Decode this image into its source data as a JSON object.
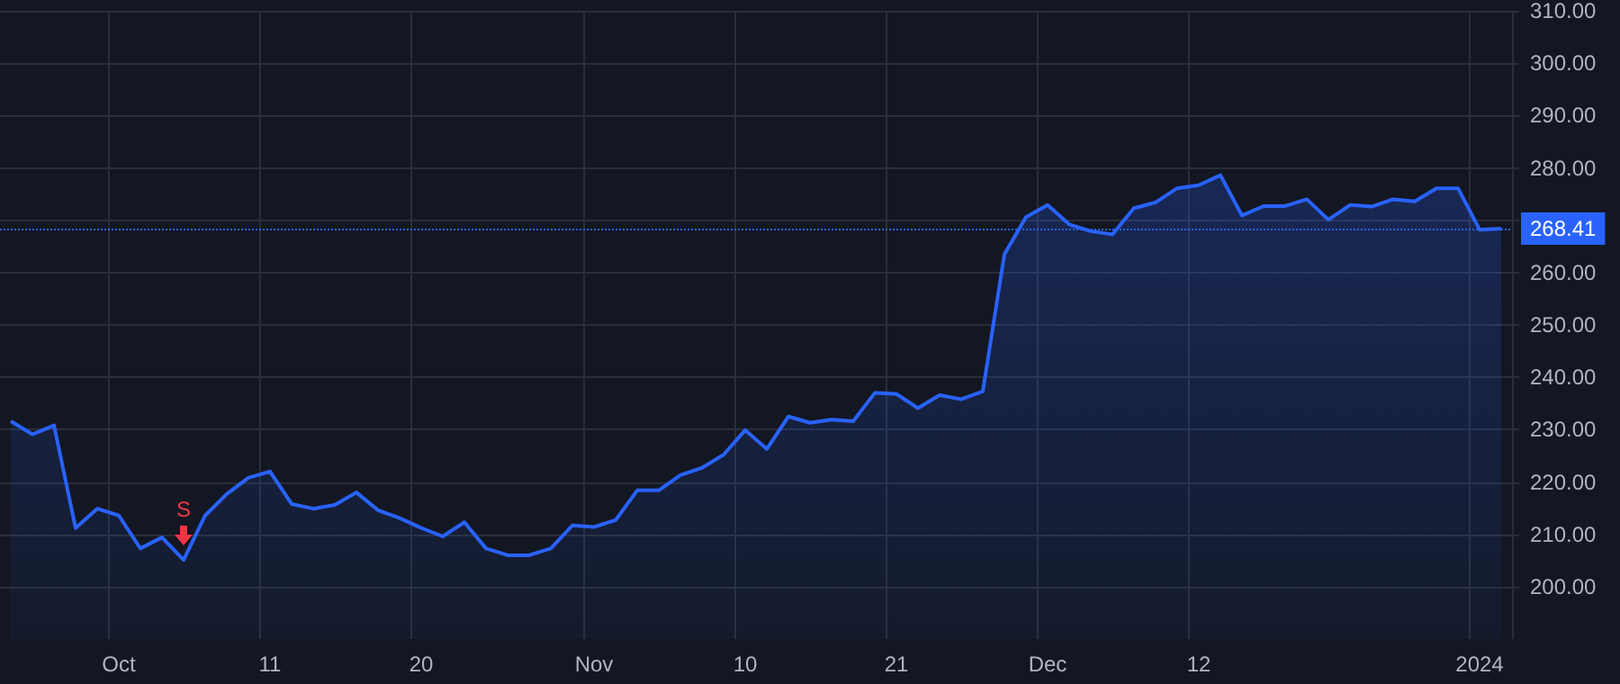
{
  "chart_data": {
    "type": "area",
    "categories": [
      null,
      null,
      null,
      null,
      null,
      "Oct",
      null,
      null,
      null,
      null,
      null,
      null,
      "11",
      null,
      null,
      null,
      null,
      null,
      null,
      "20",
      null,
      null,
      null,
      null,
      null,
      null,
      null,
      "Nov",
      null,
      null,
      null,
      null,
      null,
      null,
      "10",
      null,
      null,
      null,
      null,
      null,
      null,
      "21",
      null,
      null,
      null,
      null,
      null,
      null,
      "Dec",
      null,
      null,
      null,
      null,
      null,
      null,
      "12",
      null,
      null,
      null,
      null,
      null,
      null,
      null,
      null,
      null,
      null,
      null,
      null,
      "2024",
      null
    ],
    "series": [
      {
        "color": "#2962ff",
        "values": [
          231.6,
          229.1,
          230.8,
          211.2,
          214.9,
          213.6,
          207.3,
          209.4,
          205.1,
          213.6,
          217.7,
          220.8,
          222.0,
          215.8,
          214.9,
          215.6,
          218.0,
          214.6,
          213.1,
          211.2,
          209.6,
          212.3,
          207.3,
          206.0,
          206.0,
          207.3,
          211.7,
          211.4,
          212.7,
          218.4,
          218.4,
          221.3,
          222.7,
          225.2,
          229.9,
          226.3,
          232.5,
          231.3,
          231.9,
          231.6,
          237.0,
          236.8,
          234.1,
          236.6,
          235.8,
          237.3,
          263.5,
          270.6,
          272.9,
          269.2,
          267.9,
          267.3,
          272.3,
          273.4,
          276.1,
          276.7,
          278.6,
          270.9,
          272.7,
          272.7,
          274.0,
          270.1,
          272.9,
          272.6,
          274.0,
          273.6,
          276.1,
          276.1,
          268.2,
          268.4
        ]
      }
    ],
    "ylim": [
      190,
      310
    ],
    "yticks": [
      {
        "value": 200,
        "label": "200.00"
      },
      {
        "value": 210,
        "label": "210.00"
      },
      {
        "value": 220,
        "label": "220.00"
      },
      {
        "value": 230,
        "label": "230.00"
      },
      {
        "value": 240,
        "label": "240.00"
      },
      {
        "value": 250,
        "label": "250.00"
      },
      {
        "value": 260,
        "label": "260.00"
      },
      {
        "value": 270,
        "label": null
      },
      {
        "value": 280,
        "label": "280.00"
      },
      {
        "value": 290,
        "label": "290.00"
      },
      {
        "value": 300,
        "label": "300.00"
      },
      {
        "value": 310,
        "label": "310.00"
      }
    ],
    "ref_lines": [
      {
        "axis": "y",
        "value": 268.41,
        "label": "268.41",
        "color": "#2962ff",
        "line_style": "dotted"
      }
    ],
    "annotations": [
      {
        "text": "S",
        "y": 205.1
      }
    ],
    "grid": true,
    "marker": "none",
    "line_style": "solid"
  }
}
